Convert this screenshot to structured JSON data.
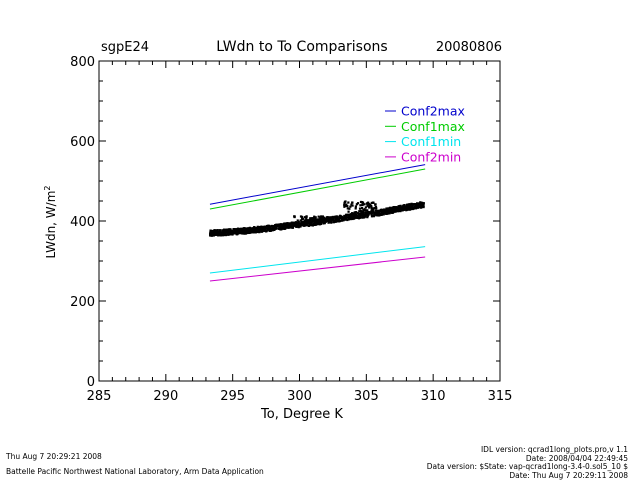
{
  "header": {
    "site": "sgpE24",
    "title": "LWdn to To Comparisons",
    "date": "20080806"
  },
  "chart_data": {
    "type": "line",
    "title": "LWdn to To Comparisons",
    "xlabel": "To, Degree K",
    "ylabel": "LWdn, W/m²",
    "ylabel_main": "LWdn, W/m",
    "ylabel_sup": "2",
    "xlim": [
      285,
      315
    ],
    "ylim": [
      0,
      800
    ],
    "xticks": [
      285,
      290,
      295,
      300,
      305,
      310,
      315
    ],
    "yticks": [
      0,
      200,
      400,
      600,
      800
    ],
    "legend_position": "top-right",
    "series": [
      {
        "name": "Conf2max",
        "color": "#0000cc",
        "x": [
          293.3,
          309.4
        ],
        "y": [
          442,
          541
        ]
      },
      {
        "name": "Conf1max",
        "color": "#00cc00",
        "x": [
          293.3,
          309.4
        ],
        "y": [
          430,
          530
        ]
      },
      {
        "name": "Conf1min",
        "color": "#00e5ee",
        "x": [
          293.3,
          309.4
        ],
        "y": [
          270,
          336
        ]
      },
      {
        "name": "Conf2min",
        "color": "#cc00cc",
        "x": [
          293.3,
          309.4
        ],
        "y": [
          250,
          310
        ]
      }
    ],
    "observations": {
      "color": "#000000",
      "x": [
        293.3,
        294.5,
        296.0,
        297.5,
        299.0,
        300.0,
        301.0,
        302.0,
        302.8,
        303.5,
        304.0,
        304.5,
        305.0,
        306.0,
        307.0,
        308.0,
        309.3
      ],
      "y": [
        370,
        372,
        376,
        381,
        388,
        392,
        396,
        401,
        405,
        409,
        412,
        414,
        416,
        421,
        428,
        434,
        442
      ],
      "bumps": [
        {
          "x": [
            299.5,
            302.5
          ],
          "y_max": 412
        },
        {
          "x": [
            303.3,
            305.8
          ],
          "y_max": 450
        }
      ]
    }
  },
  "footer": {
    "run_date": "Thu Aug  7 20:29:21 2008",
    "org": "Battelle Pacific Northwest National Laboratory, Arm Data Application",
    "idl_version": "IDL version: qcrad1long_plots.pro,v 1.1",
    "idl_date": "Date: 2008/04/04 22:49:45",
    "data_version": "Data version: $State: vap-qcrad1long-3.4-0.sol5_10 $",
    "data_date": "Date: Thu Aug  7 20:29:11 2008"
  }
}
